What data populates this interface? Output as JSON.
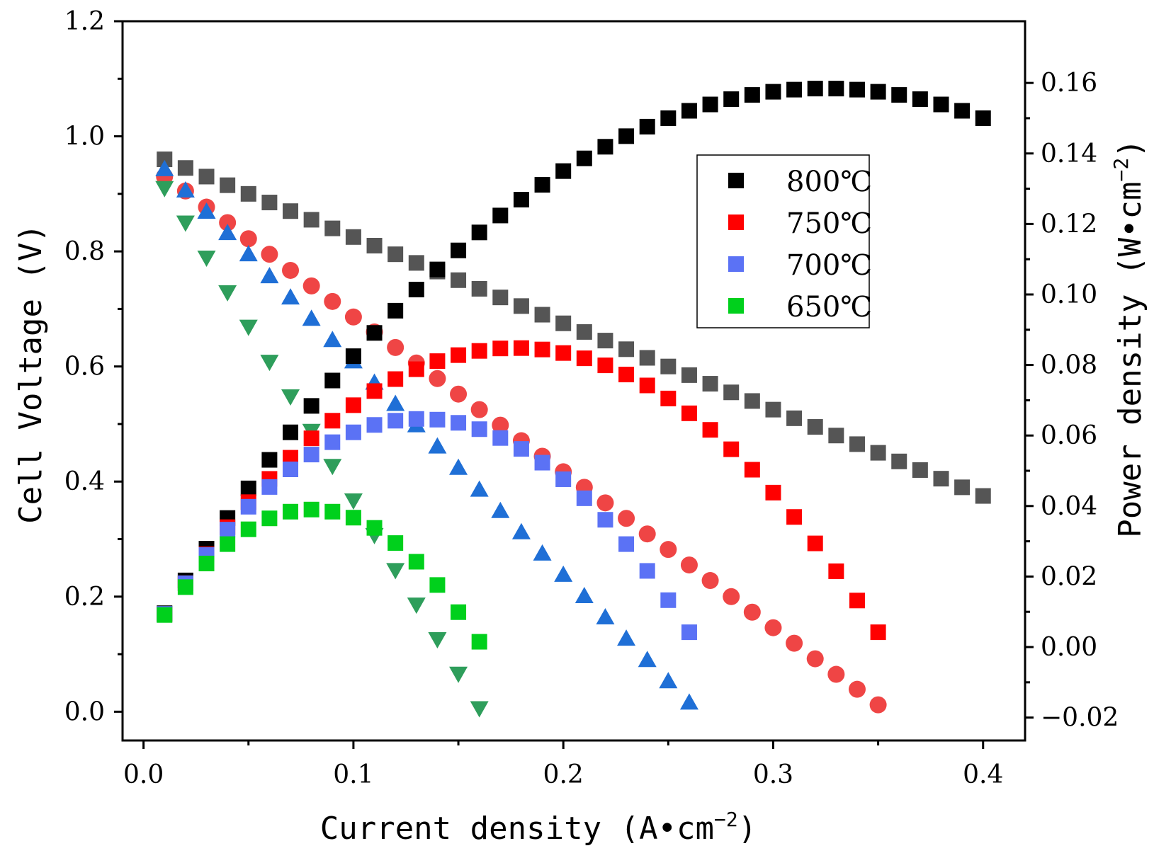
{
  "chart_data": {
    "type": "scatter",
    "x": {
      "label": "Current density (A•cm",
      "label_exp": "−2",
      "label_close": ")",
      "lim": [
        -0.01,
        0.42
      ],
      "ticks": [
        0.0,
        0.1,
        0.2,
        0.3,
        0.4
      ],
      "tick_labels": [
        "0.0",
        "0.1",
        "0.2",
        "0.3",
        "0.4"
      ]
    },
    "y_left": {
      "label": "Cell Voltage (V)",
      "lim": [
        -0.05,
        1.2
      ],
      "ticks": [
        0.0,
        0.2,
        0.4,
        0.6,
        0.8,
        1.0,
        1.2
      ],
      "tick_labels": [
        "0.0",
        "0.2",
        "0.4",
        "0.6",
        "0.8",
        "1.0",
        "1.2"
      ]
    },
    "y_right": {
      "label": "Power density (W•cm",
      "label_exp": "−2",
      "label_close": ")",
      "lim": [
        -0.0265,
        0.1775
      ],
      "ticks": [
        -0.02,
        0.0,
        0.02,
        0.04,
        0.06,
        0.08,
        0.1,
        0.12,
        0.14,
        0.16
      ],
      "tick_labels": [
        "−0.02",
        "0.00",
        "0.02",
        "0.04",
        "0.06",
        "0.08",
        "0.10",
        "0.12",
        "0.14",
        "0.16"
      ]
    },
    "legend": {
      "position": "upper-center-right",
      "entries": [
        "800℃",
        "750℃",
        "700℃",
        "650℃"
      ]
    },
    "series": [
      {
        "name": "800℃ voltage",
        "axis": "left",
        "marker": "square",
        "color": "#555555",
        "x": [
          0.01,
          0.02,
          0.03,
          0.04,
          0.05,
          0.06,
          0.07,
          0.08,
          0.09,
          0.1,
          0.11,
          0.12,
          0.13,
          0.14,
          0.15,
          0.16,
          0.17,
          0.18,
          0.19,
          0.2,
          0.21,
          0.22,
          0.23,
          0.24,
          0.25,
          0.26,
          0.27,
          0.28,
          0.29,
          0.3,
          0.31,
          0.32,
          0.33,
          0.34,
          0.35,
          0.36,
          0.37,
          0.38,
          0.39,
          0.4
        ],
        "values": [
          0.96,
          0.945,
          0.93,
          0.915,
          0.9,
          0.885,
          0.87,
          0.855,
          0.84,
          0.825,
          0.81,
          0.795,
          0.78,
          0.765,
          0.75,
          0.735,
          0.72,
          0.705,
          0.69,
          0.675,
          0.66,
          0.645,
          0.63,
          0.615,
          0.6,
          0.585,
          0.57,
          0.555,
          0.54,
          0.525,
          0.51,
          0.495,
          0.48,
          0.465,
          0.45,
          0.435,
          0.42,
          0.405,
          0.39,
          0.375
        ]
      },
      {
        "name": "750℃ voltage",
        "axis": "left",
        "marker": "circle",
        "color": "#ef4545",
        "x": [
          0.01,
          0.02,
          0.03,
          0.04,
          0.05,
          0.06,
          0.07,
          0.08,
          0.09,
          0.1,
          0.11,
          0.12,
          0.13,
          0.14,
          0.15,
          0.16,
          0.17,
          0.18,
          0.19,
          0.2,
          0.21,
          0.22,
          0.23,
          0.24,
          0.25,
          0.26,
          0.27,
          0.28,
          0.29,
          0.3,
          0.31,
          0.32,
          0.33,
          0.34,
          0.35
        ],
        "values": [
          0.93,
          0.905,
          0.877,
          0.85,
          0.822,
          0.795,
          0.767,
          0.74,
          0.713,
          0.686,
          0.66,
          0.633,
          0.606,
          0.579,
          0.552,
          0.525,
          0.498,
          0.471,
          0.444,
          0.417,
          0.39,
          0.363,
          0.336,
          0.309,
          0.282,
          0.255,
          0.228,
          0.2,
          0.173,
          0.146,
          0.119,
          0.092,
          0.065,
          0.039,
          0.012
        ]
      },
      {
        "name": "700℃ voltage",
        "axis": "left",
        "marker": "triangle-up",
        "color": "#1f6fd6",
        "x": [
          0.01,
          0.02,
          0.03,
          0.04,
          0.05,
          0.06,
          0.07,
          0.08,
          0.09,
          0.1,
          0.11,
          0.12,
          0.13,
          0.14,
          0.15,
          0.16,
          0.17,
          0.18,
          0.19,
          0.2,
          0.21,
          0.22,
          0.23,
          0.24,
          0.25,
          0.26
        ],
        "values": [
          0.943,
          0.906,
          0.869,
          0.832,
          0.795,
          0.757,
          0.72,
          0.683,
          0.646,
          0.609,
          0.572,
          0.535,
          0.498,
          0.461,
          0.424,
          0.386,
          0.349,
          0.312,
          0.275,
          0.238,
          0.201,
          0.164,
          0.127,
          0.09,
          0.053,
          0.016
        ]
      },
      {
        "name": "650℃ voltage",
        "axis": "left",
        "marker": "triangle-down",
        "color": "#2e9e5b",
        "x": [
          0.01,
          0.02,
          0.03,
          0.04,
          0.05,
          0.06,
          0.07,
          0.08,
          0.09,
          0.1,
          0.11,
          0.12,
          0.13,
          0.14,
          0.15,
          0.16
        ],
        "values": [
          0.91,
          0.85,
          0.789,
          0.729,
          0.669,
          0.608,
          0.548,
          0.488,
          0.427,
          0.367,
          0.307,
          0.246,
          0.186,
          0.126,
          0.066,
          0.006
        ]
      },
      {
        "name": "800℃",
        "axis": "right",
        "marker": "square",
        "color": "#000000",
        "x": [
          0.01,
          0.02,
          0.03,
          0.04,
          0.05,
          0.06,
          0.07,
          0.08,
          0.09,
          0.1,
          0.11,
          0.12,
          0.13,
          0.14,
          0.15,
          0.16,
          0.17,
          0.18,
          0.19,
          0.2,
          0.21,
          0.22,
          0.23,
          0.24,
          0.25,
          0.26,
          0.27,
          0.28,
          0.29,
          0.3,
          0.31,
          0.32,
          0.33,
          0.34,
          0.35,
          0.36,
          0.37,
          0.38,
          0.39,
          0.4
        ],
        "values": [
          0.0096,
          0.0189,
          0.0279,
          0.0366,
          0.045,
          0.0531,
          0.0609,
          0.0684,
          0.0756,
          0.0825,
          0.0891,
          0.0954,
          0.1014,
          0.1071,
          0.1125,
          0.1176,
          0.1224,
          0.1269,
          0.1311,
          0.135,
          0.1386,
          0.1419,
          0.1449,
          0.1476,
          0.15,
          0.1521,
          0.1539,
          0.1554,
          0.1566,
          0.1575,
          0.1581,
          0.1584,
          0.1584,
          0.1581,
          0.1575,
          0.1566,
          0.1554,
          0.1539,
          0.1521,
          0.15
        ]
      },
      {
        "name": "750℃",
        "axis": "right",
        "marker": "square",
        "color": "#ff0000",
        "x": [
          0.01,
          0.02,
          0.03,
          0.04,
          0.05,
          0.06,
          0.07,
          0.08,
          0.09,
          0.1,
          0.11,
          0.12,
          0.13,
          0.14,
          0.15,
          0.16,
          0.17,
          0.18,
          0.19,
          0.2,
          0.21,
          0.22,
          0.23,
          0.24,
          0.25,
          0.26,
          0.27,
          0.28,
          0.29,
          0.3,
          0.31,
          0.32,
          0.33,
          0.34,
          0.35
        ],
        "values": [
          0.0093,
          0.0181,
          0.0263,
          0.034,
          0.0411,
          0.0477,
          0.0537,
          0.0592,
          0.0642,
          0.0686,
          0.0726,
          0.076,
          0.0788,
          0.0811,
          0.0828,
          0.084,
          0.0847,
          0.0848,
          0.0844,
          0.0834,
          0.0819,
          0.0799,
          0.0773,
          0.0742,
          0.0705,
          0.0663,
          0.0616,
          0.0561,
          0.0503,
          0.0438,
          0.0369,
          0.0294,
          0.0215,
          0.0132,
          0.0042
        ]
      },
      {
        "name": "700℃",
        "axis": "right",
        "marker": "square",
        "color": "#5b72f5",
        "x": [
          0.01,
          0.02,
          0.03,
          0.04,
          0.05,
          0.06,
          0.07,
          0.08,
          0.09,
          0.1,
          0.11,
          0.12,
          0.13,
          0.14,
          0.15,
          0.16,
          0.17,
          0.18,
          0.19,
          0.2,
          0.21,
          0.22,
          0.23,
          0.24,
          0.25,
          0.26
        ],
        "values": [
          0.0094,
          0.0181,
          0.0261,
          0.0333,
          0.0398,
          0.0454,
          0.0504,
          0.0546,
          0.0581,
          0.0609,
          0.063,
          0.0642,
          0.0647,
          0.0645,
          0.0636,
          0.0618,
          0.0593,
          0.0562,
          0.0523,
          0.0476,
          0.0422,
          0.0361,
          0.0292,
          0.0216,
          0.0133,
          0.0042
        ]
      },
      {
        "name": "650℃",
        "axis": "right",
        "marker": "square",
        "color": "#00d01c",
        "x": [
          0.01,
          0.02,
          0.03,
          0.04,
          0.05,
          0.06,
          0.07,
          0.08,
          0.09,
          0.1,
          0.11,
          0.12,
          0.13,
          0.14,
          0.15,
          0.16
        ],
        "values": [
          0.0091,
          0.017,
          0.0237,
          0.0292,
          0.0334,
          0.0365,
          0.0384,
          0.039,
          0.0384,
          0.0367,
          0.0338,
          0.0295,
          0.0242,
          0.0176,
          0.0099,
          0.0015
        ]
      }
    ]
  }
}
